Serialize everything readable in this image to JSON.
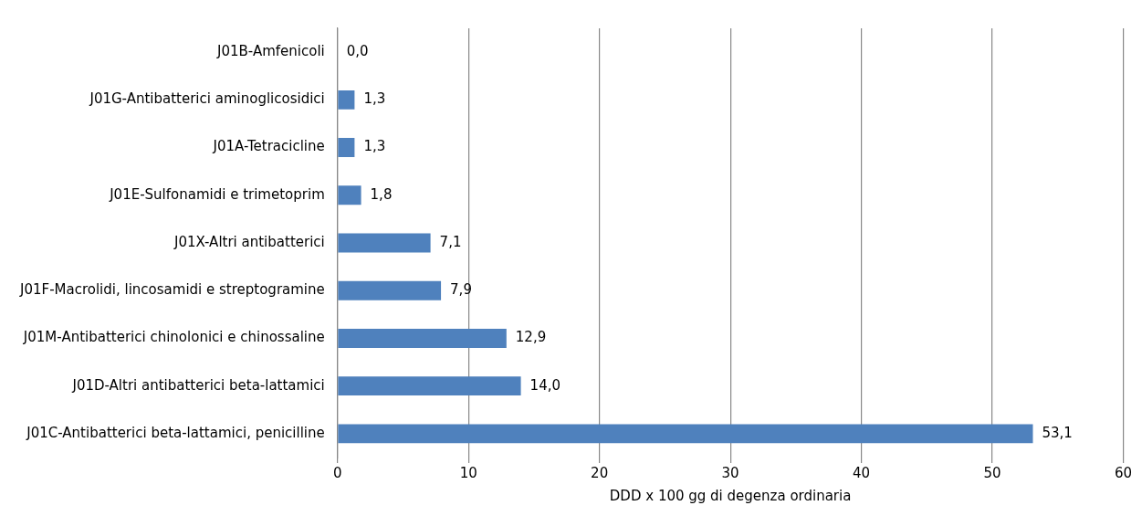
{
  "chart_data": {
    "type": "bar",
    "orientation": "horizontal",
    "categories": [
      "J01B-Amfenicoli",
      "J01G-Antibatterici aminoglicosidici",
      "J01A-Tetracicline",
      "J01E-Sulfonamidi e trimetoprim",
      "J01X-Altri antibatterici",
      "J01F-Macrolidi, lincosamidi e streptogramine",
      "J01M-Antibatterici chinolonici e chinossaline",
      "J01D-Altri antibatterici beta-lattamici",
      "J01C-Antibatterici beta-lattamici, penicilline"
    ],
    "values": [
      0.0,
      1.3,
      1.3,
      1.8,
      7.1,
      7.9,
      12.9,
      14.0,
      53.1
    ],
    "value_labels": [
      "0,0",
      "1,3",
      "1,3",
      "1,8",
      "7,1",
      "7,9",
      "12,9",
      "14,0",
      "53,1"
    ],
    "color": "#4f81bd",
    "xlabel": "DDD x 100 gg di degenza ordinaria",
    "xlim": [
      0,
      60
    ],
    "xticks": [
      0,
      10,
      20,
      30,
      40,
      50,
      60
    ],
    "grid": "x",
    "legend": false
  }
}
